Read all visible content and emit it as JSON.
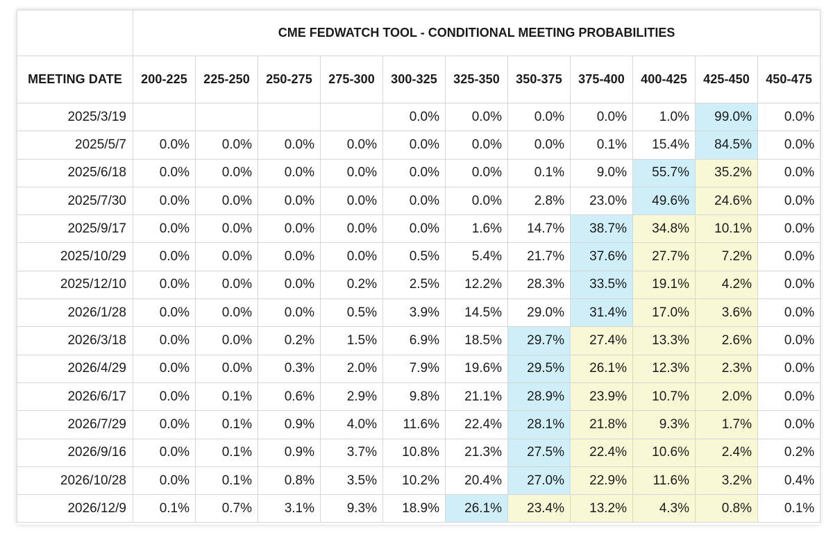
{
  "title": "CME FEDWATCH TOOL - CONDITIONAL MEETING PROBABILITIES",
  "colors": {
    "highlight_max": "#cfeef7",
    "highlight_range": "#f8f8d6",
    "grid": "#d6d6d6"
  },
  "header": {
    "date_label": "MEETING DATE",
    "ranges": [
      "200-225",
      "225-250",
      "250-275",
      "275-300",
      "300-325",
      "325-350",
      "350-375",
      "375-400",
      "400-425",
      "425-450",
      "450-475"
    ]
  },
  "rows": [
    {
      "date": "2025/3/19",
      "values": [
        "",
        "",
        "",
        "",
        "0.0%",
        "0.0%",
        "0.0%",
        "0.0%",
        "1.0%",
        "99.0%",
        "0.0%"
      ],
      "highlight": [
        "",
        "",
        "",
        "",
        "",
        "",
        "",
        "",
        "",
        "blue",
        ""
      ]
    },
    {
      "date": "2025/5/7",
      "values": [
        "0.0%",
        "0.0%",
        "0.0%",
        "0.0%",
        "0.0%",
        "0.0%",
        "0.0%",
        "0.1%",
        "15.4%",
        "84.5%",
        "0.0%"
      ],
      "highlight": [
        "",
        "",
        "",
        "",
        "",
        "",
        "",
        "",
        "",
        "blue",
        ""
      ]
    },
    {
      "date": "2025/6/18",
      "values": [
        "0.0%",
        "0.0%",
        "0.0%",
        "0.0%",
        "0.0%",
        "0.0%",
        "0.1%",
        "9.0%",
        "55.7%",
        "35.2%",
        "0.0%"
      ],
      "highlight": [
        "",
        "",
        "",
        "",
        "",
        "",
        "",
        "",
        "blue",
        "yellow",
        ""
      ]
    },
    {
      "date": "2025/7/30",
      "values": [
        "0.0%",
        "0.0%",
        "0.0%",
        "0.0%",
        "0.0%",
        "0.0%",
        "2.8%",
        "23.0%",
        "49.6%",
        "24.6%",
        "0.0%"
      ],
      "highlight": [
        "",
        "",
        "",
        "",
        "",
        "",
        "",
        "",
        "blue",
        "yellow",
        ""
      ]
    },
    {
      "date": "2025/9/17",
      "values": [
        "0.0%",
        "0.0%",
        "0.0%",
        "0.0%",
        "0.0%",
        "1.6%",
        "14.7%",
        "38.7%",
        "34.8%",
        "10.1%",
        "0.0%"
      ],
      "highlight": [
        "",
        "",
        "",
        "",
        "",
        "",
        "",
        "blue",
        "yellow",
        "yellow",
        ""
      ]
    },
    {
      "date": "2025/10/29",
      "values": [
        "0.0%",
        "0.0%",
        "0.0%",
        "0.0%",
        "0.5%",
        "5.4%",
        "21.7%",
        "37.6%",
        "27.7%",
        "7.2%",
        "0.0%"
      ],
      "highlight": [
        "",
        "",
        "",
        "",
        "",
        "",
        "",
        "blue",
        "yellow",
        "yellow",
        ""
      ]
    },
    {
      "date": "2025/12/10",
      "values": [
        "0.0%",
        "0.0%",
        "0.0%",
        "0.2%",
        "2.5%",
        "12.2%",
        "28.3%",
        "33.5%",
        "19.1%",
        "4.2%",
        "0.0%"
      ],
      "highlight": [
        "",
        "",
        "",
        "",
        "",
        "",
        "",
        "blue",
        "yellow",
        "yellow",
        ""
      ]
    },
    {
      "date": "2026/1/28",
      "values": [
        "0.0%",
        "0.0%",
        "0.0%",
        "0.5%",
        "3.9%",
        "14.5%",
        "29.0%",
        "31.4%",
        "17.0%",
        "3.6%",
        "0.0%"
      ],
      "highlight": [
        "",
        "",
        "",
        "",
        "",
        "",
        "",
        "blue",
        "yellow",
        "yellow",
        ""
      ]
    },
    {
      "date": "2026/3/18",
      "values": [
        "0.0%",
        "0.0%",
        "0.2%",
        "1.5%",
        "6.9%",
        "18.5%",
        "29.7%",
        "27.4%",
        "13.3%",
        "2.6%",
        "0.0%"
      ],
      "highlight": [
        "",
        "",
        "",
        "",
        "",
        "",
        "blue",
        "yellow",
        "yellow",
        "yellow",
        ""
      ]
    },
    {
      "date": "2026/4/29",
      "values": [
        "0.0%",
        "0.0%",
        "0.3%",
        "2.0%",
        "7.9%",
        "19.6%",
        "29.5%",
        "26.1%",
        "12.3%",
        "2.3%",
        "0.0%"
      ],
      "highlight": [
        "",
        "",
        "",
        "",
        "",
        "",
        "blue",
        "yellow",
        "yellow",
        "yellow",
        ""
      ]
    },
    {
      "date": "2026/6/17",
      "values": [
        "0.0%",
        "0.1%",
        "0.6%",
        "2.9%",
        "9.8%",
        "21.1%",
        "28.9%",
        "23.9%",
        "10.7%",
        "2.0%",
        "0.0%"
      ],
      "highlight": [
        "",
        "",
        "",
        "",
        "",
        "",
        "blue",
        "yellow",
        "yellow",
        "yellow",
        ""
      ]
    },
    {
      "date": "2026/7/29",
      "values": [
        "0.0%",
        "0.1%",
        "0.9%",
        "4.0%",
        "11.6%",
        "22.4%",
        "28.1%",
        "21.8%",
        "9.3%",
        "1.7%",
        "0.0%"
      ],
      "highlight": [
        "",
        "",
        "",
        "",
        "",
        "",
        "blue",
        "yellow",
        "yellow",
        "yellow",
        ""
      ]
    },
    {
      "date": "2026/9/16",
      "values": [
        "0.0%",
        "0.1%",
        "0.9%",
        "3.7%",
        "10.8%",
        "21.3%",
        "27.5%",
        "22.4%",
        "10.6%",
        "2.4%",
        "0.2%"
      ],
      "highlight": [
        "",
        "",
        "",
        "",
        "",
        "",
        "blue",
        "yellow",
        "yellow",
        "yellow",
        ""
      ]
    },
    {
      "date": "2026/10/28",
      "values": [
        "0.0%",
        "0.1%",
        "0.8%",
        "3.5%",
        "10.2%",
        "20.4%",
        "27.0%",
        "22.9%",
        "11.6%",
        "3.2%",
        "0.4%"
      ],
      "highlight": [
        "",
        "",
        "",
        "",
        "",
        "",
        "blue",
        "yellow",
        "yellow",
        "yellow",
        ""
      ]
    },
    {
      "date": "2026/12/9",
      "values": [
        "0.1%",
        "0.7%",
        "3.1%",
        "9.3%",
        "18.9%",
        "26.1%",
        "23.4%",
        "13.2%",
        "4.3%",
        "0.8%",
        "0.1%"
      ],
      "highlight": [
        "",
        "",
        "",
        "",
        "",
        "blue",
        "yellow",
        "yellow",
        "yellow",
        "yellow",
        ""
      ]
    }
  ]
}
